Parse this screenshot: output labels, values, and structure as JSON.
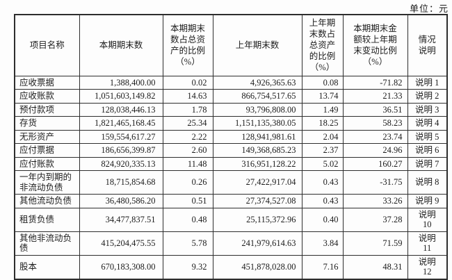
{
  "page": {
    "unit_label": "单位：元"
  },
  "colors": {
    "border": "#2d2d2d",
    "text": "#1c1c1c",
    "background": "#fdfdfd"
  },
  "table": {
    "columns": [
      {
        "key": "item",
        "label": "项目名称"
      },
      {
        "key": "current_end",
        "label": "本期期末数"
      },
      {
        "key": "current_pct",
        "label": "本期期末\n数占总资\n产的比例\n（%）"
      },
      {
        "key": "prior_end",
        "label": "上年期末数"
      },
      {
        "key": "prior_pct",
        "label": "上年期\n末数占\n总资产\n的比例\n（%）"
      },
      {
        "key": "change_pct",
        "label": "本期期末金\n额较上年期\n末变动比例\n（%）"
      },
      {
        "key": "note",
        "label": "情况\n说明"
      }
    ],
    "rows": [
      {
        "item": "应收票据",
        "current_end": "1,388,400.00",
        "current_pct": "0.02",
        "prior_end": "4,926,365.63",
        "prior_pct": "0.08",
        "change_pct": "-71.82",
        "note": "说明 1"
      },
      {
        "item": "应收账款",
        "current_end": "1,051,603,149.82",
        "current_pct": "14.63",
        "prior_end": "866,754,517.65",
        "prior_pct": "13.74",
        "change_pct": "21.33",
        "note": "说明 2"
      },
      {
        "item": "预付款项",
        "current_end": "128,038,446.13",
        "current_pct": "1.78",
        "prior_end": "93,796,808.00",
        "prior_pct": "1.49",
        "change_pct": "36.51",
        "note": "说明 3"
      },
      {
        "item": "存货",
        "current_end": "1,821,465,168.45",
        "current_pct": "25.34",
        "prior_end": "1,151,135,380.05",
        "prior_pct": "18.25",
        "change_pct": "58.23",
        "note": "说明 4"
      },
      {
        "item": "无形资产",
        "current_end": "159,554,617.27",
        "current_pct": "2.22",
        "prior_end": "128,941,981.61",
        "prior_pct": "2.04",
        "change_pct": "23.74",
        "note": "说明 5"
      },
      {
        "item": "应付票据",
        "current_end": "186,656,399.87",
        "current_pct": "2.60",
        "prior_end": "149,368,685.23",
        "prior_pct": "2.37",
        "change_pct": "24.96",
        "note": "说明 6"
      },
      {
        "item": "应付账款",
        "current_end": "824,920,335.13",
        "current_pct": "11.48",
        "prior_end": "316,951,128.22",
        "prior_pct": "5.02",
        "change_pct": "160.27",
        "note": "说明 7"
      },
      {
        "item": "一年内到期的\n非流动负债",
        "current_end": "18,715,854.68",
        "current_pct": "0.26",
        "prior_end": "27,422,917.04",
        "prior_pct": "0.43",
        "change_pct": "-31.75",
        "note": "说明 8"
      },
      {
        "item": "其他流动负债",
        "current_end": "36,480,586.20",
        "current_pct": "0.51",
        "prior_end": "27,374,527.08",
        "prior_pct": "0.43",
        "change_pct": "33.26",
        "note": "说明 9"
      },
      {
        "item": "租赁负债",
        "current_end": "34,477,837.51",
        "current_pct": "0.48",
        "prior_end": "25,115,372.96",
        "prior_pct": "0.40",
        "change_pct": "37.28",
        "note": "说明\n10"
      },
      {
        "item": "其他非流动负\n债",
        "current_end": "415,204,475.55",
        "current_pct": "5.78",
        "prior_end": "241,979,614.63",
        "prior_pct": "3.84",
        "change_pct": "71.59",
        "note": "说明\n11"
      },
      {
        "item": "股本",
        "current_end": "670,183,308.00",
        "current_pct": "9.32",
        "prior_end": "451,878,028.00",
        "prior_pct": "7.16",
        "change_pct": "48.31",
        "note": "说明\n12"
      }
    ]
  }
}
